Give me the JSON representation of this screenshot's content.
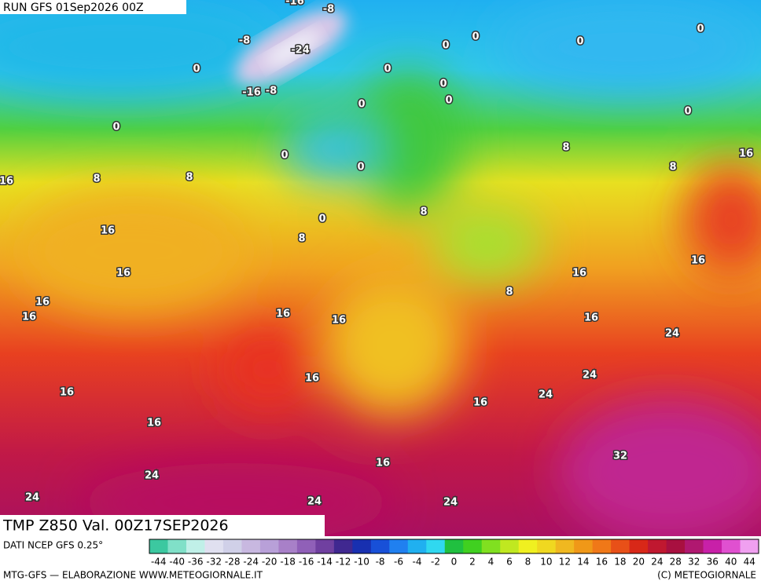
{
  "header": {
    "run": "RUN GFS 01Sep2026 00Z",
    "title": "TMP Z850 Val. 00Z17SEP2026"
  },
  "map_labels": [
    -16,
    -8,
    -8,
    -24,
    -16,
    -8,
    0,
    0,
    0,
    0,
    0,
    0,
    0,
    0,
    0,
    0,
    0,
    0,
    0,
    0,
    8,
    8,
    8,
    8,
    8,
    8,
    8,
    16,
    16,
    16,
    16,
    16,
    16,
    16,
    16,
    16,
    16,
    16,
    16,
    16,
    16,
    16,
    16,
    24,
    24,
    24,
    24,
    24,
    24,
    24,
    32
  ],
  "legend": {
    "source": "DATI NCEP GFS 0.25°",
    "labels": [
      -44,
      -40,
      -36,
      -32,
      -28,
      -24,
      -20,
      -18,
      -16,
      -14,
      -12,
      -10,
      -8,
      -6,
      -4,
      -2,
      0,
      2,
      4,
      6,
      8,
      10,
      12,
      14,
      16,
      18,
      20,
      24,
      28,
      32,
      36,
      40,
      44
    ],
    "colors": [
      "#3cc8a0",
      "#80e0c8",
      "#c0f0e8",
      "#e0e0f0",
      "#d0d0e8",
      "#c8b8e0",
      "#b8a0d8",
      "#a880c8",
      "#9060b8",
      "#7040a0",
      "#402890",
      "#1830b0",
      "#1850d8",
      "#2080f0",
      "#20b0f0",
      "#30d8f0",
      "#20c040",
      "#40d020",
      "#80e020",
      "#c0e820",
      "#f0f020",
      "#f0d820",
      "#f0b820",
      "#f09818",
      "#f07818",
      "#e85018",
      "#d82818",
      "#c01830",
      "#a81040",
      "#b01870",
      "#c820a8",
      "#e050d0",
      "#f0a0f0"
    ]
  },
  "footer": {
    "left": "MTG-GFS — ELABORAZIONE WWW.METEOGIORNALE.IT",
    "right": "(C) METEOGIORNALE"
  }
}
